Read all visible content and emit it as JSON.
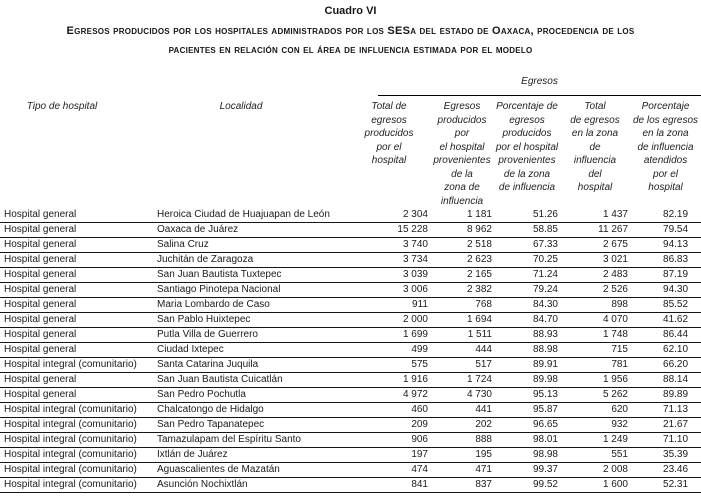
{
  "page": {
    "kicker": "Cuadro VI",
    "title_line1": "Egresos producidos por los hospitales administrados por los SESa del estado de Oaxaca, procedencia de los",
    "title_line2": "pacientes en relación con el área de influencia estimada por el modelo"
  },
  "chart_data": {
    "type": "table",
    "title": "Cuadro VI",
    "subtitle": "Egresos producidos por los hospitales administrados por los SESa del estado de Oaxaca, procedencia de los pacientes en relación con el área de influencia estimada por el modelo",
    "group_header": "Egresos",
    "group_header_spans_columns": [
      2,
      3,
      4,
      5,
      6
    ],
    "columns": [
      "Tipo de hospital",
      "Localidad",
      "Total de\negresos\nproducidos\npor el\nhospital",
      "Egresos\nproducidos por\nel hospital\nprovenientes\nde la\nzona de\ninfluencia",
      "Porcentaje de\negresos\nproducidos\npor el hospital\nprovenientes\nde la zona\nde influencia",
      "Total\nde egresos\nen la zona\nde\ninfluencia\ndel\nhospital",
      "Porcentaje\nde los egresos\nen la zona\nde influencia\natendidos\npor el\nhospital"
    ],
    "rows": [
      [
        "Hospital general",
        "Heroica Ciudad de Huajuapan de León",
        "2 304",
        "1 181",
        "51.26",
        "1 437",
        "82.19"
      ],
      [
        "Hospital general",
        "Oaxaca de Juárez",
        "15 228",
        "8 962",
        "58.85",
        "11 267",
        "79.54"
      ],
      [
        "Hospital general",
        "Salina Cruz",
        "3 740",
        "2 518",
        "67.33",
        "2 675",
        "94.13"
      ],
      [
        "Hospital general",
        "Juchitán de Zaragoza",
        "3 734",
        "2 623",
        "70.25",
        "3 021",
        "86.83"
      ],
      [
        "Hospital general",
        "San Juan Bautista Tuxtepec",
        "3 039",
        "2 165",
        "71.24",
        "2 483",
        "87.19"
      ],
      [
        "Hospital general",
        "Santiago Pinotepa Nacional",
        "3 006",
        "2 382",
        "79.24",
        "2 526",
        "94.30"
      ],
      [
        "Hospital general",
        "Maria Lombardo de Caso",
        "911",
        "768",
        "84.30",
        "898",
        "85.52"
      ],
      [
        "Hospital general",
        "San Pablo Huixtepec",
        "2 000",
        "1 694",
        "84.70",
        "4 070",
        "41.62"
      ],
      [
        "Hospital general",
        "Putla Villa de Guerrero",
        "1 699",
        "1 511",
        "88.93",
        "1 748",
        "86.44"
      ],
      [
        "Hospital general",
        "Ciudad Ixtepec",
        "499",
        "444",
        "88.98",
        "715",
        "62.10"
      ],
      [
        "Hospital integral (comunitario)",
        "Santa Catarina Juquila",
        "575",
        "517",
        "89.91",
        "781",
        "66.20"
      ],
      [
        "Hospital general",
        "San Juan Bautista Cuicatlán",
        "1 916",
        "1 724",
        "89.98",
        "1 956",
        "88.14"
      ],
      [
        "Hospital general",
        "San Pedro Pochutla",
        "4 972",
        "4 730",
        "95.13",
        "5 262",
        "89.89"
      ],
      [
        "Hospital integral (comunitario)",
        "Chalcatongo de Hidalgo",
        "460",
        "441",
        "95.87",
        "620",
        "71.13"
      ],
      [
        "Hospital integral (comunitario)",
        "San Pedro Tapanatepec",
        "209",
        "202",
        "96.65",
        "932",
        "21.67"
      ],
      [
        "Hospital integral (comunitario)",
        "Tamazulapam del Espíritu Santo",
        "906",
        "888",
        "98.01",
        "1 249",
        "71.10"
      ],
      [
        "Hospital integral (comunitario)",
        "Ixtlán de Juárez",
        "197",
        "195",
        "98.98",
        "551",
        "35.39"
      ],
      [
        "Hospital integral (comunitario)",
        "Aguascalientes de Mazatán",
        "474",
        "471",
        "99.37",
        "2 008",
        "23.46"
      ],
      [
        "Hospital integral (comunitario)",
        "Asunción Nochixtlán",
        "841",
        "837",
        "99.52",
        "1 600",
        "52.31"
      ]
    ]
  }
}
